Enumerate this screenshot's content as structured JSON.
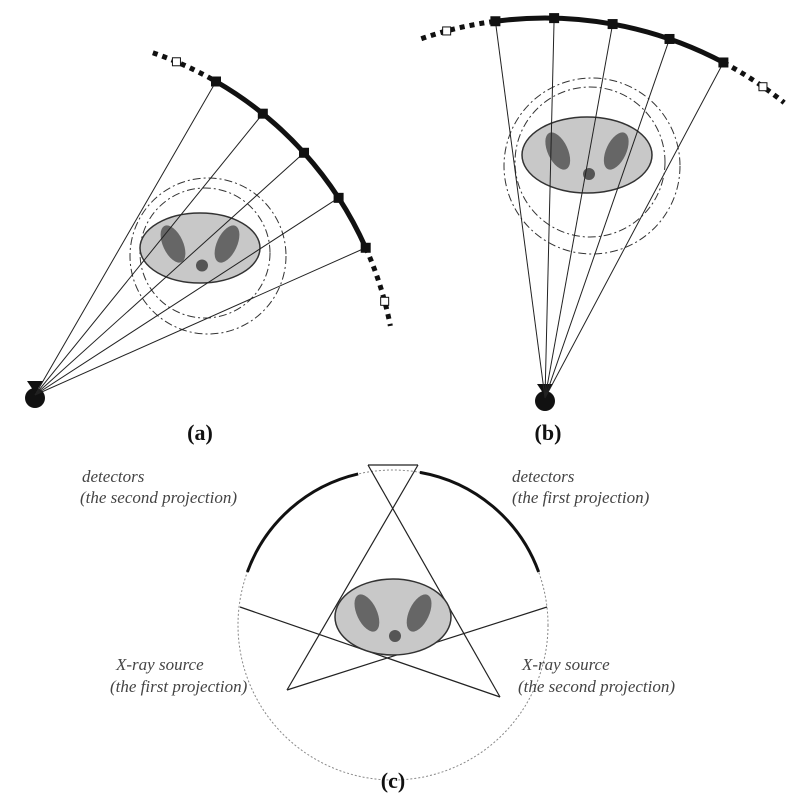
{
  "panels": {
    "a": {
      "label": "(a)"
    },
    "b": {
      "label": "(b)"
    },
    "c": {
      "label": "(c)",
      "annotations": [
        {
          "lines": [
            "detectors",
            "(the second projection)"
          ]
        },
        {
          "lines": [
            "detectors",
            "(the first projection)"
          ]
        },
        {
          "lines": [
            "X-ray source",
            "(the first projection)"
          ]
        },
        {
          "lines": [
            "X-ray source",
            "(the second projection)"
          ]
        }
      ]
    }
  }
}
